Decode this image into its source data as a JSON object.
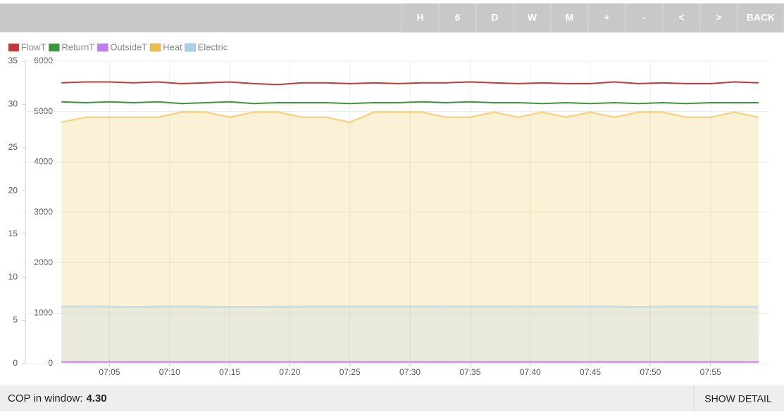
{
  "toolbar": [
    "H",
    "6",
    "D",
    "W",
    "M",
    "+",
    "-",
    "<",
    ">",
    "BACK"
  ],
  "chart_data": {
    "type": "line",
    "x": [
      "07:01",
      "07:03",
      "07:05",
      "07:07",
      "07:09",
      "07:11",
      "07:13",
      "07:15",
      "07:17",
      "07:19",
      "07:21",
      "07:23",
      "07:25",
      "07:27",
      "07:29",
      "07:31",
      "07:33",
      "07:35",
      "07:37",
      "07:39",
      "07:41",
      "07:43",
      "07:45",
      "07:47",
      "07:49",
      "07:51",
      "07:53",
      "07:55",
      "07:57",
      "07:59"
    ],
    "xlim": [
      "06:58",
      "08:00"
    ],
    "xticks": [
      "07:05",
      "07:10",
      "07:15",
      "07:20",
      "07:25",
      "07:30",
      "07:35",
      "07:40",
      "07:45",
      "07:50",
      "07:55"
    ],
    "ylim": [
      0,
      35
    ],
    "yticks": [
      0,
      5,
      10,
      15,
      20,
      25,
      30,
      35
    ],
    "y2lim": [
      0,
      6000
    ],
    "y2ticks": [
      0,
      1000,
      2000,
      3000,
      4000,
      5000,
      6000
    ],
    "grid": true,
    "series": [
      {
        "name": "FlowT",
        "color": "#c0393b",
        "values": [
          32.5,
          32.6,
          32.6,
          32.5,
          32.6,
          32.4,
          32.5,
          32.6,
          32.4,
          32.3,
          32.5,
          32.5,
          32.4,
          32.5,
          32.4,
          32.5,
          32.5,
          32.6,
          32.5,
          32.4,
          32.5,
          32.4,
          32.4,
          32.6,
          32.4,
          32.5,
          32.4,
          32.4,
          32.6,
          32.5
        ]
      },
      {
        "name": "ReturnT",
        "color": "#3c963c",
        "values": [
          30.3,
          30.2,
          30.3,
          30.2,
          30.3,
          30.1,
          30.2,
          30.3,
          30.1,
          30.2,
          30.2,
          30.2,
          30.1,
          30.2,
          30.2,
          30.3,
          30.2,
          30.3,
          30.2,
          30.2,
          30.1,
          30.2,
          30.1,
          30.2,
          30.1,
          30.2,
          30.1,
          30.2,
          30.2,
          30.2
        ]
      },
      {
        "name": "OutsideT",
        "color": "#c27ef0",
        "values": [
          0.2,
          0.2,
          0.2,
          0.2,
          0.2,
          0.2,
          0.2,
          0.2,
          0.2,
          0.2,
          0.2,
          0.2,
          0.2,
          0.2,
          0.2,
          0.2,
          0.2,
          0.2,
          0.2,
          0.2,
          0.2,
          0.2,
          0.2,
          0.2,
          0.2,
          0.2,
          0.2,
          0.2,
          0.2,
          0.2
        ]
      },
      {
        "name": "Heat",
        "color": "#efbf45",
        "axis": "y2",
        "area": true,
        "values": [
          4790,
          4890,
          4890,
          4890,
          4890,
          4990,
          4990,
          4890,
          4990,
          4990,
          4890,
          4890,
          4790,
          4990,
          4990,
          4990,
          4890,
          4890,
          4990,
          4890,
          4990,
          4890,
          4990,
          4890,
          4990,
          4990,
          4890,
          4890,
          4990,
          4890
        ]
      },
      {
        "name": "Electric",
        "color": "#a9d1ea",
        "axis": "y2",
        "area": true,
        "values": [
          1130,
          1135,
          1130,
          1128,
          1130,
          1132,
          1130,
          1125,
          1128,
          1130,
          1130,
          1132,
          1130,
          1135,
          1130,
          1132,
          1135,
          1130,
          1132,
          1135,
          1132,
          1130,
          1135,
          1130,
          1128,
          1130,
          1132,
          1130,
          1130,
          1130
        ]
      }
    ]
  },
  "footer": {
    "label": "COP in window:",
    "value": "4.30",
    "button": "SHOW DETAIL"
  }
}
